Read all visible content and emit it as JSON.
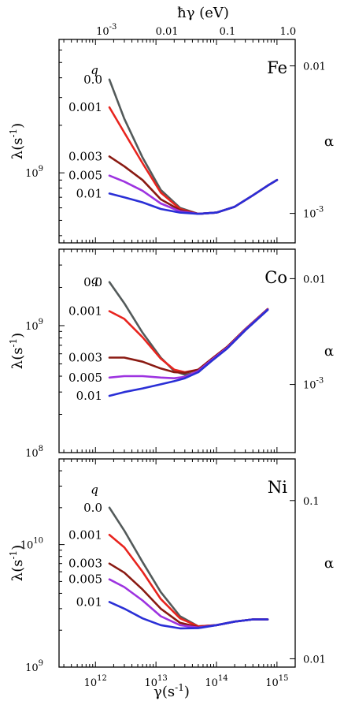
{
  "figure": {
    "top_axis_label": "ħγ (eV)",
    "top_ticks": [
      {
        "label": "10",
        "exp": "-3",
        "gamma": 1520000000000.0
      },
      {
        "label": "0.01",
        "gamma": 15200000000000.0
      },
      {
        "label": "0.1",
        "gamma": 152000000000000.0
      },
      {
        "label": "1.0",
        "gamma": 1520000000000000.0
      }
    ],
    "x_axis_label": "γ(s",
    "x_axis_label_exp": "-1",
    "x_axis_label_tail": ")",
    "y_axis_label": "λ(s",
    "y_axis_label_exp": "-1",
    "y_axis_label_tail": ")",
    "right_axis_label": "α",
    "q_symbol": "q"
  },
  "chart_data": [
    {
      "type": "line",
      "material": "Fe",
      "xlabel": "γ(s⁻¹)",
      "ylabel": "λ(s⁻¹)",
      "right_label": "α",
      "top_label": "ħγ (eV)",
      "xscale": "log",
      "yscale": "log",
      "xlim": [
        250000000000.0,
        2000000000000000.0
      ],
      "ylim": [
        360000000.0,
        7000000000.0
      ],
      "y_ticks": [
        {
          "label": "10",
          "exp": "9",
          "value": 1000000000.0
        }
      ],
      "right_ticks": [
        {
          "label": "10",
          "exp": "-3",
          "frac": 0.855
        },
        {
          "label": "0.01",
          "frac": 0.13
        }
      ],
      "grid": false,
      "legend": "inline labels at left of curves",
      "series": [
        {
          "name": "0.0",
          "color": "#535a5a",
          "points": [
            [
              1700000000000.0,
              3900000000.0
            ],
            [
              3000000000000.0,
              2200000000.0
            ],
            [
              6000000000000.0,
              1250000000.0
            ],
            [
              12000000000000.0,
              780000000.0
            ],
            [
              25000000000000.0,
              600000000.0
            ],
            [
              50000000000000.0,
              550000000.0
            ],
            [
              100000000000000.0,
              560000000.0
            ],
            [
              200000000000000.0,
              610000000.0
            ],
            [
              400000000000000.0,
              720000000.0
            ],
            [
              700000000000000.0,
              830000000.0
            ],
            [
              1000000000000000.0,
              900000000.0
            ]
          ]
        },
        {
          "name": "0.001",
          "color": "#e8241e",
          "points": [
            [
              1700000000000.0,
              2600000000.0
            ],
            [
              3000000000000.0,
              1800000000.0
            ],
            [
              6000000000000.0,
              1150000000.0
            ],
            [
              12000000000000.0,
              750000000.0
            ],
            [
              25000000000000.0,
              590000000.0
            ],
            [
              50000000000000.0,
              550000000.0
            ],
            [
              100000000000000.0,
              560000000.0
            ],
            [
              200000000000000.0,
              610000000.0
            ],
            [
              400000000000000.0,
              720000000.0
            ],
            [
              700000000000000.0,
              830000000.0
            ],
            [
              1000000000000000.0,
              900000000.0
            ]
          ]
        },
        {
          "name": "0.003",
          "color": "#8a1a12",
          "points": [
            [
              1700000000000.0,
              1270000000.0
            ],
            [
              3000000000000.0,
              1100000000.0
            ],
            [
              6000000000000.0,
              900000000.0
            ],
            [
              12000000000000.0,
              680000000.0
            ],
            [
              25000000000000.0,
              580000000.0
            ],
            [
              50000000000000.0,
              550000000.0
            ],
            [
              100000000000000.0,
              560000000.0
            ],
            [
              200000000000000.0,
              610000000.0
            ],
            [
              400000000000000.0,
              720000000.0
            ],
            [
              700000000000000.0,
              830000000.0
            ],
            [
              1000000000000000.0,
              900000000.0
            ]
          ]
        },
        {
          "name": "0.005",
          "color": "#9d33e0",
          "points": [
            [
              1700000000000.0,
              960000000.0
            ],
            [
              3000000000000.0,
              880000000.0
            ],
            [
              6000000000000.0,
              770000000.0
            ],
            [
              12000000000000.0,
              640000000.0
            ],
            [
              25000000000000.0,
              570000000.0
            ],
            [
              50000000000000.0,
              550000000.0
            ],
            [
              100000000000000.0,
              560000000.0
            ],
            [
              200000000000000.0,
              610000000.0
            ],
            [
              400000000000000.0,
              720000000.0
            ],
            [
              700000000000000.0,
              830000000.0
            ],
            [
              1000000000000000.0,
              900000000.0
            ]
          ]
        },
        {
          "name": "0.01",
          "color": "#2a2fd6",
          "points": [
            [
              1700000000000.0,
              740000000.0
            ],
            [
              3000000000000.0,
              700000000.0
            ],
            [
              6000000000000.0,
              650000000.0
            ],
            [
              12000000000000.0,
              590000000.0
            ],
            [
              25000000000000.0,
              560000000.0
            ],
            [
              50000000000000.0,
              550000000.0
            ],
            [
              100000000000000.0,
              560000000.0
            ],
            [
              200000000000000.0,
              610000000.0
            ],
            [
              400000000000000.0,
              720000000.0
            ],
            [
              700000000000000.0,
              830000000.0
            ],
            [
              1000000000000000.0,
              900000000.0
            ]
          ]
        }
      ]
    },
    {
      "type": "line",
      "material": "Co",
      "xlabel": "γ(s⁻¹)",
      "ylabel": "λ(s⁻¹)",
      "right_label": "α",
      "xscale": "log",
      "yscale": "log",
      "xlim": [
        250000000000.0,
        2000000000000000.0
      ],
      "ylim": [
        100000000.0,
        4000000000.0
      ],
      "y_ticks": [
        {
          "label": "10",
          "exp": "9",
          "value": 1000000000.0
        },
        {
          "label": "10",
          "exp": "8",
          "value": 100000000.0
        }
      ],
      "right_ticks": [
        {
          "label": "10",
          "exp": "-3",
          "frac": 0.665
        },
        {
          "label": "0.01",
          "frac": 0.145
        }
      ],
      "grid": false,
      "legend": "inline labels at left of curves",
      "series": [
        {
          "name": "0.0",
          "color": "#535a5a",
          "points": [
            [
              1700000000000.0,
              2200000000.0
            ],
            [
              3000000000000.0,
              1500000000.0
            ],
            [
              6000000000000.0,
              880000000.0
            ],
            [
              12000000000000.0,
              560000000.0
            ],
            [
              20000000000000.0,
              440000000.0
            ],
            [
              30000000000000.0,
              410000000.0
            ],
            [
              50000000000000.0,
              430000000.0
            ],
            [
              80000000000000.0,
              520000000.0
            ],
            [
              150000000000000.0,
              660000000.0
            ],
            [
              300000000000000.0,
              920000000.0
            ],
            [
              700000000000000.0,
              1330000000.0
            ]
          ]
        },
        {
          "name": "0.001",
          "color": "#e8241e",
          "points": [
            [
              1700000000000.0,
              1300000000.0
            ],
            [
              3000000000000.0,
              1130000000.0
            ],
            [
              6000000000000.0,
              810000000.0
            ],
            [
              12000000000000.0,
              550000000.0
            ],
            [
              20000000000000.0,
              450000000.0
            ],
            [
              30000000000000.0,
              430000000.0
            ],
            [
              50000000000000.0,
              450000000.0
            ],
            [
              80000000000000.0,
              540000000.0
            ],
            [
              150000000000000.0,
              680000000.0
            ],
            [
              300000000000000.0,
              940000000.0
            ],
            [
              700000000000000.0,
              1350000000.0
            ]
          ]
        },
        {
          "name": "0.003",
          "color": "#8a1a12",
          "points": [
            [
              1700000000000.0,
              560000000.0
            ],
            [
              3000000000000.0,
              560000000.0
            ],
            [
              6000000000000.0,
              520000000.0
            ],
            [
              12000000000000.0,
              460000000.0
            ],
            [
              20000000000000.0,
              430000000.0
            ],
            [
              30000000000000.0,
              425000000.0
            ],
            [
              50000000000000.0,
              450000000.0
            ],
            [
              80000000000000.0,
              540000000.0
            ],
            [
              150000000000000.0,
              680000000.0
            ],
            [
              300000000000000.0,
              940000000.0
            ],
            [
              700000000000000.0,
              1350000000.0
            ]
          ]
        },
        {
          "name": "0.005",
          "color": "#9d33e0",
          "points": [
            [
              1700000000000.0,
              390000000.0
            ],
            [
              3000000000000.0,
              400000000.0
            ],
            [
              6000000000000.0,
              400000000.0
            ],
            [
              12000000000000.0,
              390000000.0
            ],
            [
              20000000000000.0,
              385000000.0
            ],
            [
              30000000000000.0,
              395000000.0
            ],
            [
              50000000000000.0,
              440000000.0
            ],
            [
              80000000000000.0,
              530000000.0
            ],
            [
              150000000000000.0,
              670000000.0
            ],
            [
              300000000000000.0,
              930000000.0
            ],
            [
              700000000000000.0,
              1340000000.0
            ]
          ]
        },
        {
          "name": "0.01",
          "color": "#2a2fd6",
          "points": [
            [
              1700000000000.0,
              280000000.0
            ],
            [
              3000000000000.0,
              300000000.0
            ],
            [
              6000000000000.0,
              320000000.0
            ],
            [
              12000000000000.0,
              345000000.0
            ],
            [
              20000000000000.0,
              365000000.0
            ],
            [
              30000000000000.0,
              385000000.0
            ],
            [
              50000000000000.0,
              430000000.0
            ],
            [
              80000000000000.0,
              520000000.0
            ],
            [
              150000000000000.0,
              660000000.0
            ],
            [
              300000000000000.0,
              920000000.0
            ],
            [
              700000000000000.0,
              1330000000.0
            ]
          ]
        }
      ]
    },
    {
      "type": "line",
      "material": "Ni",
      "xlabel": "γ(s⁻¹)",
      "ylabel": "λ(s⁻¹)",
      "right_label": "α",
      "xscale": "log",
      "yscale": "log",
      "xlim": [
        250000000000.0,
        2000000000000000.0
      ],
      "ylim": [
        1000000000.0,
        50000000000.0
      ],
      "x_ticks": [
        {
          "label": "10",
          "exp": "12",
          "value": 1000000000000.0
        },
        {
          "label": "10",
          "exp": "13",
          "value": 10000000000000.0
        },
        {
          "label": "10",
          "exp": "14",
          "value": 100000000000000.0
        },
        {
          "label": "10",
          "exp": "15",
          "value": 1000000000000000.0
        }
      ],
      "y_ticks": [
        {
          "label": "10",
          "exp": "10",
          "value": 10000000000.0
        },
        {
          "label": "10",
          "exp": "9",
          "value": 1000000000.0
        }
      ],
      "right_ticks": [
        {
          "label": "0.1",
          "frac": 0.2
        },
        {
          "label": "0.01",
          "frac": 0.96
        }
      ],
      "grid": false,
      "legend": "inline labels at left of curves",
      "series": [
        {
          "name": "0.0",
          "color": "#535a5a",
          "points": [
            [
              1700000000000.0,
              20000000000.0
            ],
            [
              3000000000000.0,
              13000000000.0
            ],
            [
              6000000000000.0,
              7200000000.0
            ],
            [
              12000000000000.0,
              4100000000.0
            ],
            [
              25000000000000.0,
              2600000000.0
            ],
            [
              50000000000000.0,
              2150000000.0
            ],
            [
              100000000000000.0,
              2200000000.0
            ],
            [
              200000000000000.0,
              2350000000.0
            ],
            [
              400000000000000.0,
              2450000000.0
            ],
            [
              700000000000000.0,
              2450000000.0
            ]
          ]
        },
        {
          "name": "0.001",
          "color": "#e8241e",
          "points": [
            [
              1700000000000.0,
              12000000000.0
            ],
            [
              3000000000000.0,
              9500000000.0
            ],
            [
              6000000000000.0,
              6000000000.0
            ],
            [
              12000000000000.0,
              3600000000.0
            ],
            [
              25000000000000.0,
              2500000000.0
            ],
            [
              50000000000000.0,
              2150000000.0
            ],
            [
              100000000000000.0,
              2200000000.0
            ],
            [
              200000000000000.0,
              2350000000.0
            ],
            [
              400000000000000.0,
              2450000000.0
            ],
            [
              700000000000000.0,
              2450000000.0
            ]
          ]
        },
        {
          "name": "0.003",
          "color": "#8a1a12",
          "points": [
            [
              1700000000000.0,
              7000000000.0
            ],
            [
              3000000000000.0,
              5900000000.0
            ],
            [
              6000000000000.0,
              4300000000.0
            ],
            [
              12000000000000.0,
              3000000000.0
            ],
            [
              25000000000000.0,
              2300000000.0
            ],
            [
              50000000000000.0,
              2120000000.0
            ],
            [
              100000000000000.0,
              2200000000.0
            ],
            [
              200000000000000.0,
              2350000000.0
            ],
            [
              400000000000000.0,
              2450000000.0
            ],
            [
              700000000000000.0,
              2450000000.0
            ]
          ]
        },
        {
          "name": "0.005",
          "color": "#9d33e0",
          "points": [
            [
              1700000000000.0,
              5200000000.0
            ],
            [
              3000000000000.0,
              4500000000.0
            ],
            [
              6000000000000.0,
              3500000000.0
            ],
            [
              12000000000000.0,
              2600000000.0
            ],
            [
              25000000000000.0,
              2200000000.0
            ],
            [
              50000000000000.0,
              2100000000.0
            ],
            [
              100000000000000.0,
              2200000000.0
            ],
            [
              200000000000000.0,
              2350000000.0
            ],
            [
              400000000000000.0,
              2450000000.0
            ],
            [
              700000000000000.0,
              2450000000.0
            ]
          ]
        },
        {
          "name": "0.01",
          "color": "#2a2fd6",
          "points": [
            [
              1700000000000.0,
              3400000000.0
            ],
            [
              3000000000000.0,
              3000000000.0
            ],
            [
              6000000000000.0,
              2500000000.0
            ],
            [
              12000000000000.0,
              2200000000.0
            ],
            [
              25000000000000.0,
              2070000000.0
            ],
            [
              50000000000000.0,
              2080000000.0
            ],
            [
              100000000000000.0,
              2200000000.0
            ],
            [
              200000000000000.0,
              2350000000.0
            ],
            [
              400000000000000.0,
              2450000000.0
            ],
            [
              700000000000000.0,
              2450000000.0
            ]
          ]
        }
      ]
    }
  ]
}
